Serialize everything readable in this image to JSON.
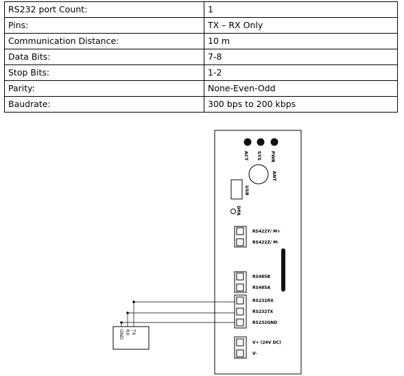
{
  "specs": [
    {
      "label": "RS232 port Count:",
      "value": "1"
    },
    {
      "label": "Pins:",
      "value": "TX – RX Only"
    },
    {
      "label": "Communication Distance:",
      "value": "10 m"
    },
    {
      "label": "Data Bits:",
      "value": "7-8"
    },
    {
      "label": "Stop Bits:",
      "value": "1-2"
    },
    {
      "label": "Parity:",
      "value": "None-Even-Odd"
    },
    {
      "label": "Baudrate:",
      "value": "300 bps to 200 kbps"
    }
  ],
  "device": {
    "leds": [
      "ACT",
      "SYS",
      "PWR"
    ],
    "antenna": "ANT",
    "usb": "USB",
    "dfa": "DFA",
    "terminals": [
      {
        "label": "RS422Y/ M+"
      },
      {
        "label": "RS422Z/ M-"
      },
      {
        "label": "RS485B"
      },
      {
        "label": "RS485A"
      },
      {
        "label": "RS232RX"
      },
      {
        "label": "RS232TX"
      },
      {
        "label": "RS232GND"
      },
      {
        "label": "V+ (24V DC)"
      },
      {
        "label": "V-"
      }
    ]
  },
  "external": {
    "pins": [
      "GND",
      "RX",
      "TX"
    ]
  }
}
